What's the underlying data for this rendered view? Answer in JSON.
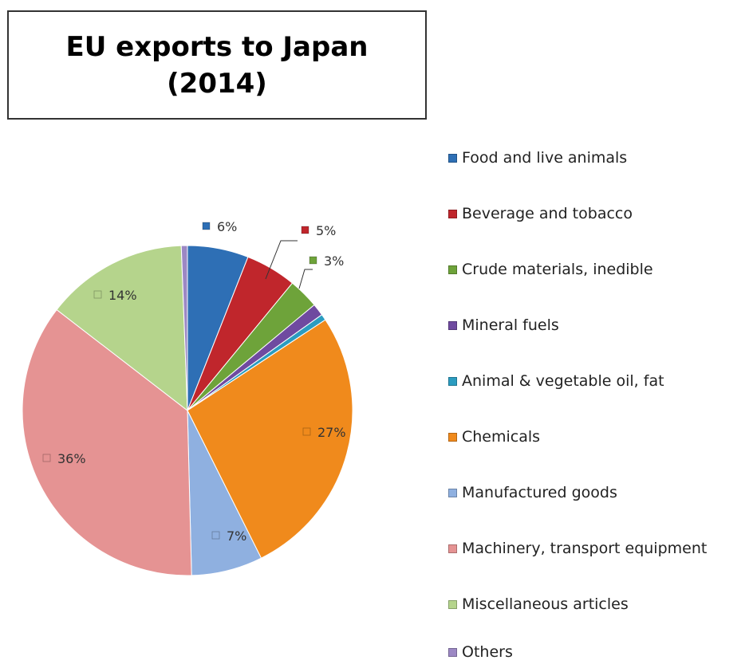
{
  "chart_data": {
    "type": "pie",
    "title_lines": [
      "EU exports to Japan",
      "(2014)"
    ],
    "slices": [
      {
        "name": "Food and  live animals",
        "value": 6,
        "label": "6%",
        "color": "#2e6fb5"
      },
      {
        "name": "Beverage and tobacco",
        "value": 5,
        "label": "5%",
        "color": "#c0262c"
      },
      {
        "name": "Crude materials, inedible",
        "value": 3,
        "label": "3%",
        "color": "#6ea33a"
      },
      {
        "name": "Mineral fuels",
        "value": 1.2,
        "label": "",
        "color": "#6f4aa0"
      },
      {
        "name": "Animal & vegetable oil, fat",
        "value": 0.6,
        "label": "",
        "color": "#2b9cc0"
      },
      {
        "name": "Chemicals",
        "value": 27,
        "label": "27%",
        "color": "#f08a1c"
      },
      {
        "name": "Manufactured goods",
        "value": 7,
        "label": "7%",
        "color": "#8fb0e0"
      },
      {
        "name": "Machinery, transport equipment",
        "value": 36,
        "label": "36%",
        "color": "#e59393"
      },
      {
        "name": "Miscellaneous articles",
        "value": 14,
        "label": "14%",
        "color": "#b5d48c"
      },
      {
        "name": "Others",
        "value": 0.6,
        "label": "",
        "color": "#9c88c4"
      }
    ],
    "legend_position": "right"
  }
}
